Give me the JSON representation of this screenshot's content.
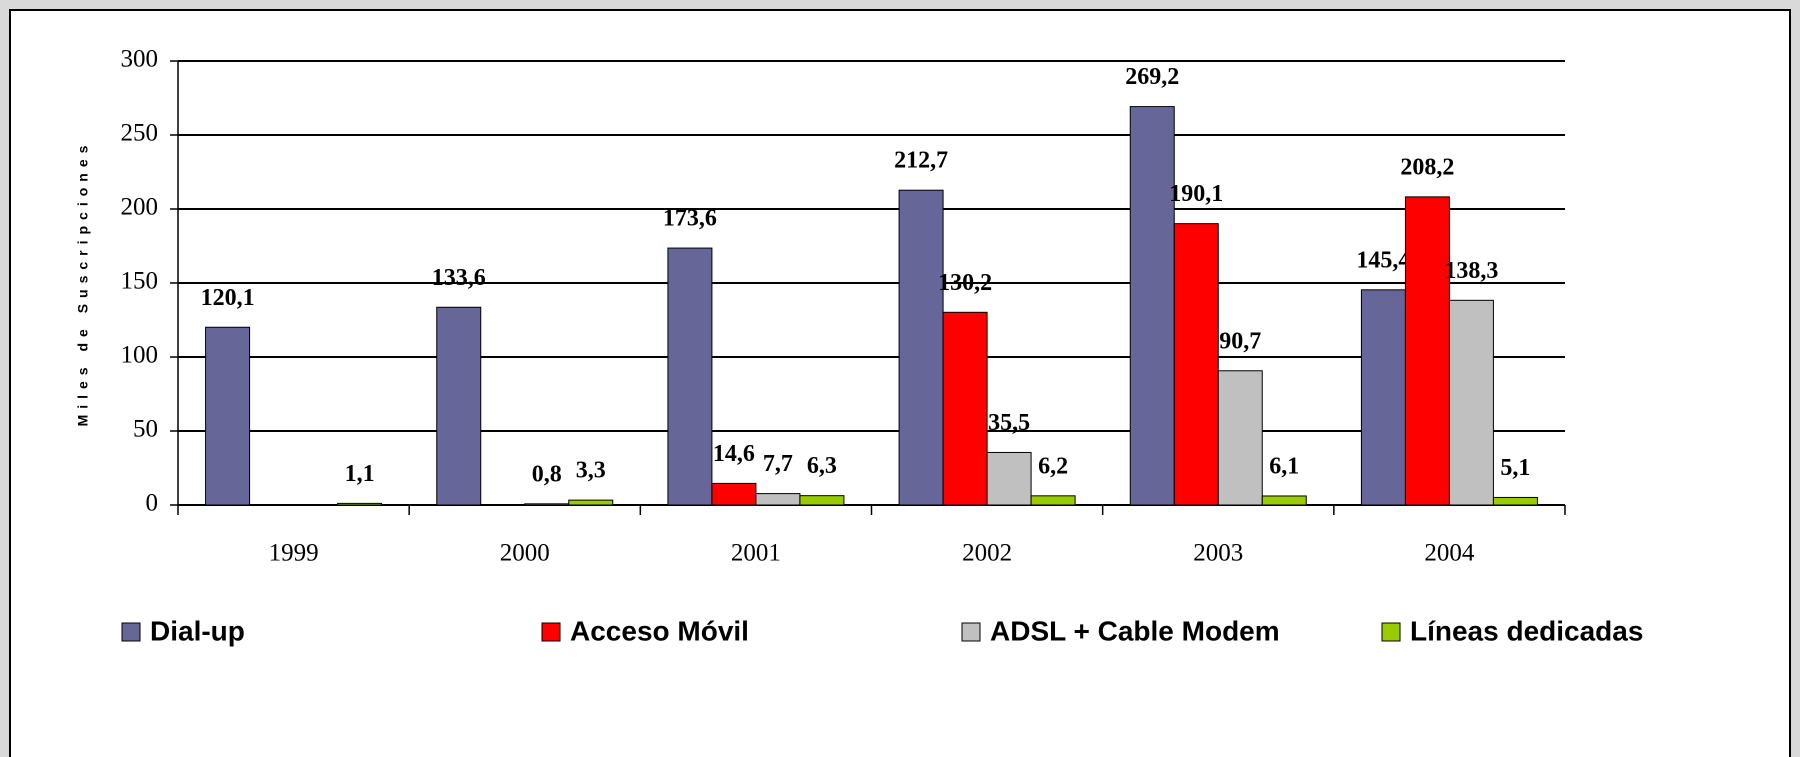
{
  "chart_data": {
    "type": "bar",
    "y_label": "Miles de Suscripciones",
    "categories": [
      "1999",
      "2000",
      "2001",
      "2002",
      "2003",
      "2004"
    ],
    "series": [
      {
        "name": "Dial-up",
        "color": "#666699",
        "values": [
          120.1,
          133.6,
          173.6,
          212.7,
          269.2,
          145.4
        ],
        "value_labels": [
          "120,1",
          "133,6",
          "173,6",
          "212,7",
          "269,2",
          "145,4"
        ]
      },
      {
        "name": "Acceso Móvil",
        "color": "#ff0000",
        "values": [
          null,
          null,
          14.6,
          130.2,
          190.1,
          208.2
        ],
        "value_labels": [
          null,
          null,
          "14,6",
          "130,2",
          "190,1",
          "208,2"
        ]
      },
      {
        "name": "ADSL + Cable Modem",
        "color": "#c0c0c0",
        "values": [
          null,
          0.8,
          7.7,
          35.5,
          90.7,
          138.3
        ],
        "value_labels": [
          null,
          "0,8",
          "7,7",
          "35,5",
          "90,7",
          "138,3"
        ]
      },
      {
        "name": "Líneas dedicadas",
        "color": "#99cc00",
        "values": [
          1.1,
          3.3,
          6.3,
          6.2,
          6.1,
          5.1
        ],
        "value_labels": [
          "1,1",
          "3,3",
          "6,3",
          "6,2",
          "6,1",
          "5,1"
        ]
      }
    ],
    "ylim": [
      0,
      300
    ],
    "yticks": [
      0,
      50,
      100,
      150,
      200,
      250,
      300
    ],
    "grid": true,
    "legend": "bottom"
  }
}
